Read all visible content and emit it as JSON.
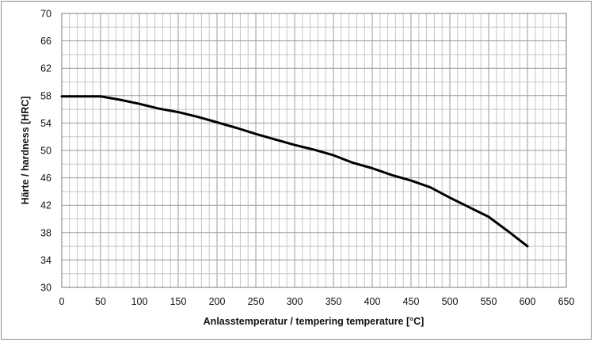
{
  "chart_data": {
    "type": "line",
    "title": "",
    "xlabel": "Anlasstemperatur / tempering temperature [°C]",
    "ylabel": "Härte / hardness [HRC]",
    "xlim": [
      0,
      650
    ],
    "ylim": [
      30,
      70
    ],
    "x_ticks": [
      0,
      50,
      100,
      150,
      200,
      250,
      300,
      350,
      400,
      450,
      500,
      550,
      600,
      650
    ],
    "y_ticks": [
      30,
      34,
      38,
      42,
      46,
      50,
      54,
      58,
      62,
      66,
      70
    ],
    "x_minor_step": 10,
    "y_minor_step": 2,
    "grid": true,
    "legend": "none",
    "line_color": "#000000",
    "series": [
      {
        "x": [
          0,
          25,
          50,
          75,
          100,
          125,
          150,
          175,
          200,
          225,
          250,
          275,
          300,
          325,
          350,
          375,
          400,
          425,
          450,
          475,
          500,
          525,
          550,
          575,
          600
        ],
        "y": [
          57.9,
          57.9,
          57.9,
          57.4,
          56.8,
          56.1,
          55.6,
          54.9,
          54.1,
          53.3,
          52.4,
          51.6,
          50.8,
          50.1,
          49.3,
          48.2,
          47.4,
          46.4,
          45.6,
          44.6,
          43.1,
          41.7,
          40.3,
          38.2,
          36.0
        ]
      }
    ]
  }
}
